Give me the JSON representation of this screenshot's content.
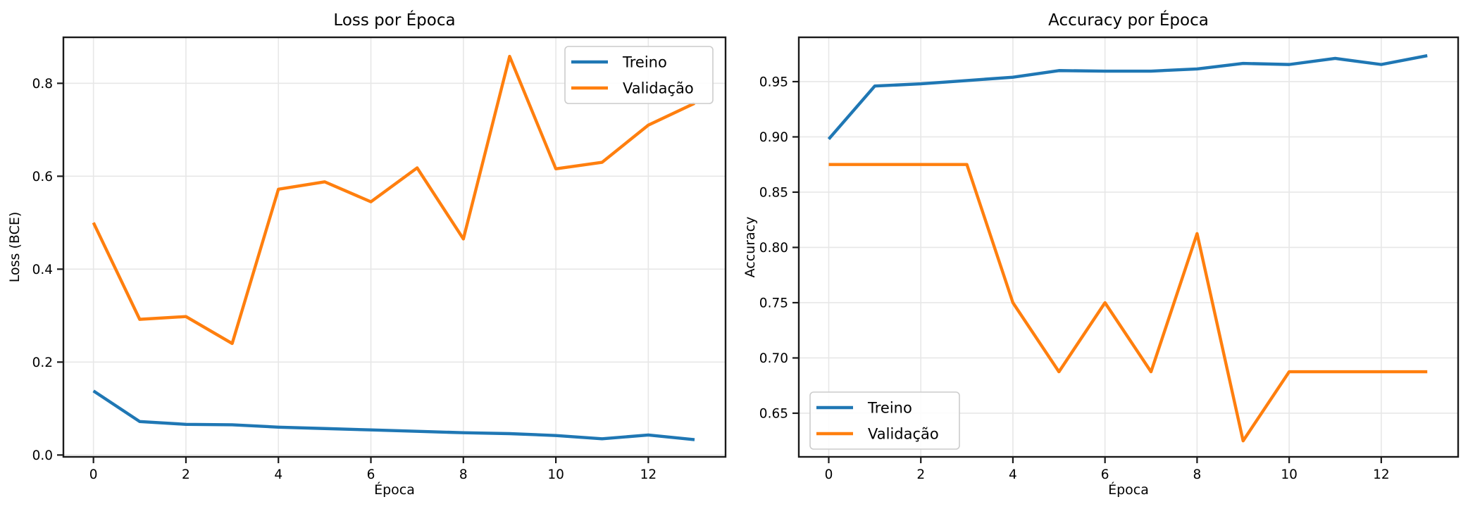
{
  "figure": {
    "kind": "training-curves",
    "background": "#ffffff"
  },
  "colors": {
    "treino": "#1f77b4",
    "validacao": "#ff7f0e",
    "grid": "#e7e7e7",
    "spine": "#1a1a1a",
    "text": "#000000",
    "legend_border": "#cccccc",
    "legend_fill": "#ffffff"
  },
  "chart_data": [
    {
      "type": "line",
      "title": "Loss por Época",
      "xlabel": "Época",
      "ylabel": "Loss (BCE)",
      "x": [
        0,
        1,
        2,
        3,
        4,
        5,
        6,
        7,
        8,
        9,
        10,
        11,
        12,
        13
      ],
      "series": [
        {
          "name": "Treino",
          "color_key": "treino",
          "values": [
            0.138,
            0.072,
            0.066,
            0.065,
            0.06,
            0.057,
            0.054,
            0.051,
            0.048,
            0.046,
            0.042,
            0.035,
            0.043,
            0.033
          ]
        },
        {
          "name": "Validação",
          "color_key": "validacao",
          "values": [
            0.5,
            0.292,
            0.298,
            0.24,
            0.572,
            0.588,
            0.545,
            0.618,
            0.465,
            0.858,
            0.616,
            0.63,
            0.71,
            0.757
          ]
        }
      ],
      "xlim": [
        -0.65,
        13.67
      ],
      "ylim": [
        -0.004,
        0.899
      ],
      "xticks": [
        0,
        2,
        4,
        6,
        8,
        10,
        12
      ],
      "xtick_labels": [
        "0",
        "2",
        "4",
        "6",
        "8",
        "10",
        "12"
      ],
      "yticks": [
        0.0,
        0.2,
        0.4,
        0.6,
        0.8
      ],
      "ytick_labels": [
        "0.0",
        "0.2",
        "0.4",
        "0.6",
        "0.8"
      ],
      "grid": true,
      "legend_position": "upper-right"
    },
    {
      "type": "line",
      "title": "Accuracy por Época",
      "xlabel": "Época",
      "ylabel": "Accuracy",
      "x": [
        0,
        1,
        2,
        3,
        4,
        5,
        6,
        7,
        8,
        9,
        10,
        11,
        12,
        13
      ],
      "series": [
        {
          "name": "Treino",
          "color_key": "treino",
          "values": [
            0.898,
            0.946,
            0.948,
            0.951,
            0.954,
            0.96,
            0.9595,
            0.9595,
            0.9615,
            0.9665,
            0.9655,
            0.971,
            0.9655,
            0.9735
          ]
        },
        {
          "name": "Validação",
          "color_key": "validacao",
          "values": [
            0.875,
            0.875,
            0.875,
            0.875,
            0.75,
            0.6875,
            0.75,
            0.6875,
            0.8125,
            0.625,
            0.6875,
            0.6875,
            0.6875,
            0.6875
          ]
        }
      ],
      "xlim": [
        -0.65,
        13.67
      ],
      "ylim": [
        0.6105,
        0.9901
      ],
      "xticks": [
        0,
        2,
        4,
        6,
        8,
        10,
        12
      ],
      "xtick_labels": [
        "0",
        "2",
        "4",
        "6",
        "8",
        "10",
        "12"
      ],
      "yticks": [
        0.65,
        0.7,
        0.75,
        0.8,
        0.85,
        0.9,
        0.95
      ],
      "ytick_labels": [
        "0.65",
        "0.70",
        "0.75",
        "0.80",
        "0.85",
        "0.90",
        "0.95"
      ],
      "grid": true,
      "legend_position": "lower-left"
    }
  ]
}
